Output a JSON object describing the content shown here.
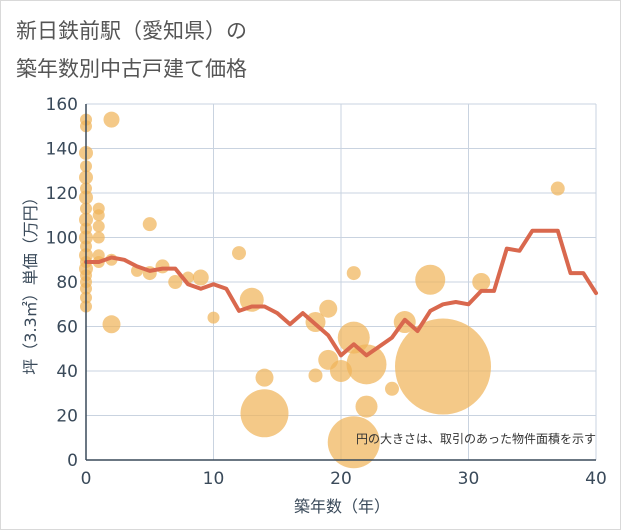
{
  "chart_data": {
    "type": "scatter",
    "title_lines": [
      "新日鉄前駅（愛知県）の",
      "築年数別中古戸建て価格"
    ],
    "xlabel": "築年数（年）",
    "ylabel": "坪（3.3㎡）単価（万円）",
    "xlim": [
      0,
      40
    ],
    "ylim": [
      0,
      160
    ],
    "x_ticks": [
      0,
      10,
      20,
      30,
      40
    ],
    "y_ticks": [
      0,
      20,
      40,
      60,
      80,
      100,
      120,
      140,
      160
    ],
    "grid": true,
    "note": "円の大きさは、取引のあった物件面積を示す",
    "colors": {
      "bubble": "#f0b45a",
      "line": "#d9684e",
      "grid": "#c9d3e0",
      "axis": "#3a4a5a"
    },
    "bubbles": [
      {
        "x": 0,
        "y": 153,
        "r": 6
      },
      {
        "x": 0,
        "y": 150,
        "r": 6
      },
      {
        "x": 0,
        "y": 138,
        "r": 7
      },
      {
        "x": 0,
        "y": 132,
        "r": 6
      },
      {
        "x": 0,
        "y": 127,
        "r": 7
      },
      {
        "x": 0,
        "y": 122,
        "r": 6
      },
      {
        "x": 0,
        "y": 118,
        "r": 7
      },
      {
        "x": 0,
        "y": 113,
        "r": 6
      },
      {
        "x": 0,
        "y": 108,
        "r": 7
      },
      {
        "x": 0,
        "y": 104,
        "r": 6
      },
      {
        "x": 0,
        "y": 100,
        "r": 7
      },
      {
        "x": 0,
        "y": 96,
        "r": 6
      },
      {
        "x": 0,
        "y": 92,
        "r": 7
      },
      {
        "x": 0,
        "y": 89,
        "r": 6
      },
      {
        "x": 0,
        "y": 86,
        "r": 7
      },
      {
        "x": 0,
        "y": 83,
        "r": 6
      },
      {
        "x": 0,
        "y": 80,
        "r": 6
      },
      {
        "x": 0,
        "y": 77,
        "r": 6
      },
      {
        "x": 0,
        "y": 73,
        "r": 6
      },
      {
        "x": 0,
        "y": 69,
        "r": 6
      },
      {
        "x": 1,
        "y": 113,
        "r": 6
      },
      {
        "x": 1,
        "y": 110,
        "r": 6
      },
      {
        "x": 1,
        "y": 105,
        "r": 6
      },
      {
        "x": 1,
        "y": 100,
        "r": 6
      },
      {
        "x": 1,
        "y": 92,
        "r": 6
      },
      {
        "x": 1,
        "y": 89,
        "r": 6
      },
      {
        "x": 2,
        "y": 153,
        "r": 8
      },
      {
        "x": 2,
        "y": 90,
        "r": 6
      },
      {
        "x": 2,
        "y": 61,
        "r": 9
      },
      {
        "x": 4,
        "y": 85,
        "r": 6
      },
      {
        "x": 5,
        "y": 106,
        "r": 7
      },
      {
        "x": 5,
        "y": 84,
        "r": 7
      },
      {
        "x": 6,
        "y": 87,
        "r": 7
      },
      {
        "x": 7,
        "y": 80,
        "r": 7
      },
      {
        "x": 8,
        "y": 82,
        "r": 6
      },
      {
        "x": 9,
        "y": 82,
        "r": 8
      },
      {
        "x": 10,
        "y": 64,
        "r": 6
      },
      {
        "x": 12,
        "y": 93,
        "r": 7
      },
      {
        "x": 13,
        "y": 72,
        "r": 12
      },
      {
        "x": 14,
        "y": 37,
        "r": 9
      },
      {
        "x": 14,
        "y": 21,
        "r": 24
      },
      {
        "x": 18,
        "y": 62,
        "r": 10
      },
      {
        "x": 18,
        "y": 38,
        "r": 7
      },
      {
        "x": 19,
        "y": 68,
        "r": 9
      },
      {
        "x": 19,
        "y": 45,
        "r": 10
      },
      {
        "x": 20,
        "y": 40,
        "r": 11
      },
      {
        "x": 21,
        "y": 84,
        "r": 7
      },
      {
        "x": 21,
        "y": 55,
        "r": 16
      },
      {
        "x": 21,
        "y": 8,
        "r": 26
      },
      {
        "x": 22,
        "y": 43,
        "r": 20
      },
      {
        "x": 22,
        "y": 24,
        "r": 11
      },
      {
        "x": 24,
        "y": 32,
        "r": 7
      },
      {
        "x": 25,
        "y": 62,
        "r": 11
      },
      {
        "x": 27,
        "y": 81,
        "r": 15
      },
      {
        "x": 28,
        "y": 42,
        "r": 48
      },
      {
        "x": 31,
        "y": 80,
        "r": 9
      },
      {
        "x": 37,
        "y": 122,
        "r": 7
      }
    ],
    "line": {
      "x": [
        0,
        1,
        2,
        3,
        4,
        5,
        6,
        7,
        8,
        9,
        10,
        11,
        12,
        13,
        14,
        15,
        16,
        17,
        18,
        19,
        20,
        21,
        22,
        23,
        24,
        25,
        26,
        27,
        28,
        29,
        30,
        31,
        32,
        33,
        34,
        35,
        36,
        37,
        38,
        39,
        40
      ],
      "y": [
        89,
        89,
        91,
        90,
        87,
        85,
        86,
        86,
        79,
        77,
        79,
        77,
        67,
        69,
        69,
        66,
        61,
        66,
        61,
        56,
        47,
        52,
        47,
        51,
        55,
        63,
        58,
        67,
        70,
        71,
        70,
        76,
        76,
        95,
        94,
        103,
        103,
        103,
        84,
        84,
        75
      ]
    }
  }
}
